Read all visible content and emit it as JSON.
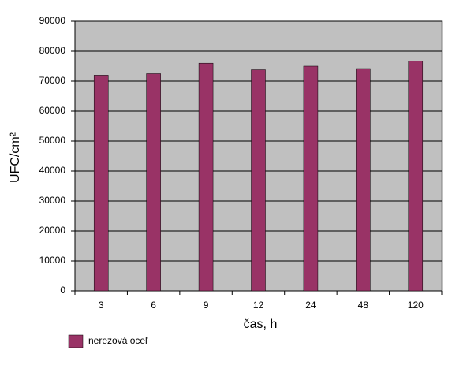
{
  "chart_data": {
    "type": "bar",
    "categories": [
      "3",
      "6",
      "9",
      "12",
      "24",
      "48",
      "120"
    ],
    "series": [
      {
        "name": "nerezová oceľ",
        "color": "#993366",
        "values": [
          72000,
          72500,
          76000,
          73800,
          75000,
          74200,
          76700
        ]
      }
    ],
    "ylim": [
      0,
      90000
    ],
    "yticks": [
      0,
      10000,
      20000,
      30000,
      40000,
      50000,
      60000,
      70000,
      80000,
      90000
    ],
    "xlabel": "čas, h",
    "ylabel": "UFC/cm²",
    "grid": true,
    "legend": "bottom-left"
  }
}
